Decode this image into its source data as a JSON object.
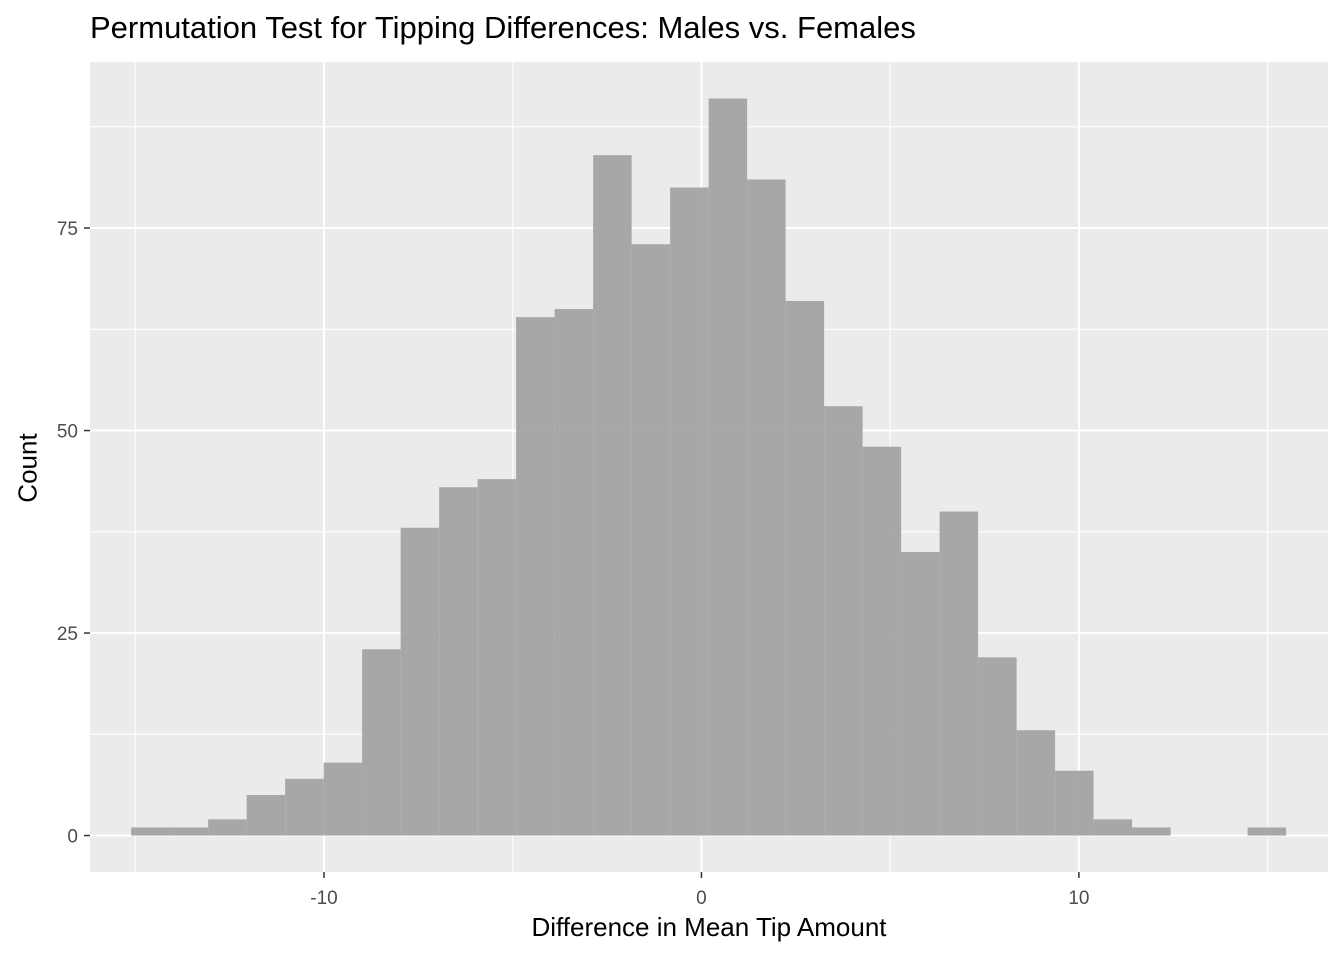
{
  "chart_data": {
    "type": "bar",
    "title": "Permutation Test for Tipping Differences: Males vs. Females",
    "xlabel": "Difference in Mean Tip Amount",
    "ylabel": "Count",
    "bin_width": 1.02,
    "bins": [
      {
        "x": -14.6,
        "count": 1
      },
      {
        "x": -13.58,
        "count": 1
      },
      {
        "x": -12.56,
        "count": 2
      },
      {
        "x": -11.54,
        "count": 5
      },
      {
        "x": -10.52,
        "count": 7
      },
      {
        "x": -9.5,
        "count": 9
      },
      {
        "x": -8.48,
        "count": 23
      },
      {
        "x": -7.46,
        "count": 38
      },
      {
        "x": -6.44,
        "count": 43
      },
      {
        "x": -5.42,
        "count": 44
      },
      {
        "x": -4.4,
        "count": 64
      },
      {
        "x": -3.38,
        "count": 65
      },
      {
        "x": -2.36,
        "count": 84
      },
      {
        "x": -1.34,
        "count": 73
      },
      {
        "x": -0.32,
        "count": 80
      },
      {
        "x": 0.7,
        "count": 91
      },
      {
        "x": 1.72,
        "count": 81
      },
      {
        "x": 2.74,
        "count": 66
      },
      {
        "x": 3.76,
        "count": 53
      },
      {
        "x": 4.78,
        "count": 48
      },
      {
        "x": 5.8,
        "count": 35
      },
      {
        "x": 6.82,
        "count": 40
      },
      {
        "x": 7.84,
        "count": 22
      },
      {
        "x": 8.86,
        "count": 13
      },
      {
        "x": 9.88,
        "count": 8
      },
      {
        "x": 10.9,
        "count": 2
      },
      {
        "x": 11.92,
        "count": 1
      },
      {
        "x": 12.94,
        "count": 0
      },
      {
        "x": 13.96,
        "count": 0
      },
      {
        "x": 14.98,
        "count": 1
      }
    ],
    "xlim": [
      -16.2,
      16.6
    ],
    "ylim": [
      -4.5,
      95.5
    ],
    "x_ticks": [
      -10,
      0,
      10
    ],
    "x_tick_labels": [
      "-10",
      "0",
      "10"
    ],
    "y_ticks": [
      0,
      25,
      50,
      75
    ],
    "y_tick_labels": [
      "0",
      "25",
      "50",
      "75"
    ],
    "grid": true,
    "bar_color": "#a3a3a3",
    "panel_color": "#ebebeb",
    "grid_color": "#ffffff"
  }
}
